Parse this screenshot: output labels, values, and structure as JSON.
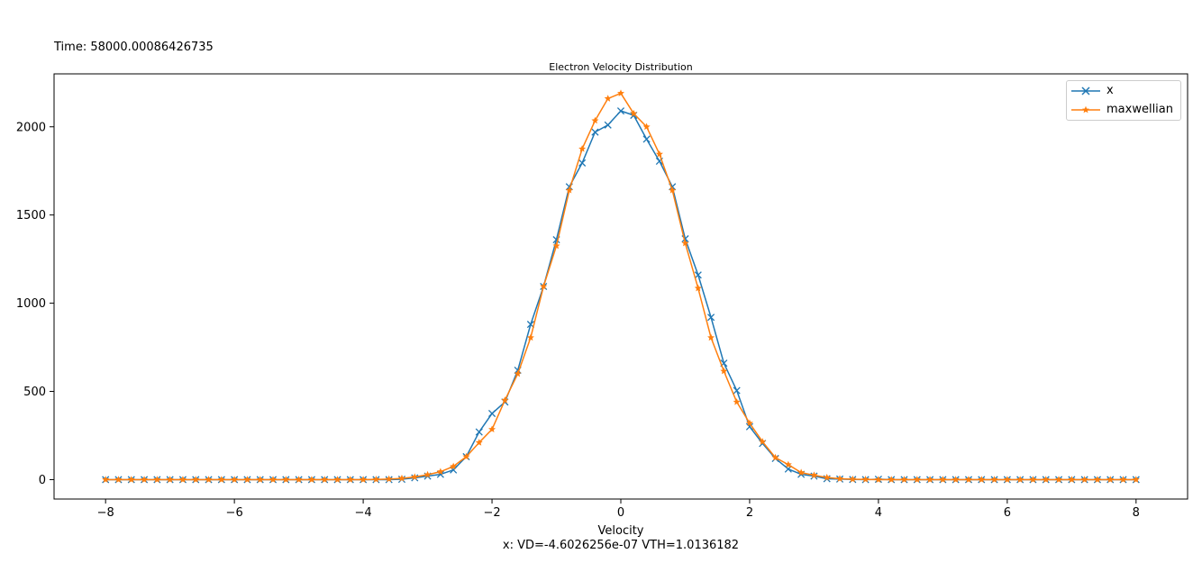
{
  "figure_texts": {
    "time_label": "Time: 58000.00086426735",
    "subcaption": "x: VD=-4.6026256e-07   VTH=1.0136182"
  },
  "colors": {
    "series_x": "#1f77b4",
    "series_maxwellian": "#ff7f0e"
  },
  "chart_data": {
    "type": "line",
    "title": "Electron Velocity Distribution",
    "xlabel": "Velocity",
    "ylabel": "",
    "xlim": [
      -8.8,
      8.8
    ],
    "ylim": [
      -110,
      2300
    ],
    "xticks": [
      -8,
      -6,
      -4,
      -2,
      0,
      2,
      4,
      6,
      8
    ],
    "xtick_labels": [
      "−8",
      "−6",
      "−4",
      "−2",
      "0",
      "2",
      "4",
      "6",
      "8"
    ],
    "yticks": [
      0,
      500,
      1000,
      1500,
      2000
    ],
    "ytick_labels": [
      "0",
      "500",
      "1000",
      "1500",
      "2000"
    ],
    "grid": false,
    "legend_position": "top-right",
    "x": [
      -8.0,
      -7.8,
      -7.6,
      -7.4,
      -7.2,
      -7.0,
      -6.8,
      -6.6,
      -6.4,
      -6.2,
      -6.0,
      -5.8,
      -5.6,
      -5.4,
      -5.2,
      -5.0,
      -4.8,
      -4.6,
      -4.4,
      -4.2,
      -4.0,
      -3.8,
      -3.6,
      -3.4,
      -3.2,
      -3.0,
      -2.8,
      -2.6,
      -2.4,
      -2.2,
      -2.0,
      -1.8,
      -1.6,
      -1.4,
      -1.2,
      -1.0,
      -0.8,
      -0.6,
      -0.4,
      -0.2,
      0.0,
      0.2,
      0.4,
      0.6,
      0.8,
      1.0,
      1.2,
      1.4,
      1.6,
      1.8,
      2.0,
      2.2,
      2.4,
      2.6,
      2.8,
      3.0,
      3.2,
      3.4,
      3.6,
      3.8,
      4.0,
      4.2,
      4.4,
      4.6,
      4.8,
      5.0,
      5.2,
      5.4,
      5.6,
      5.8,
      6.0,
      6.2,
      6.4,
      6.6,
      6.8,
      7.0,
      7.2,
      7.4,
      7.6,
      7.8,
      8.0
    ],
    "series": [
      {
        "name": "x",
        "marker": "x",
        "values": [
          0,
          0,
          0,
          0,
          0,
          0,
          0,
          0,
          0,
          0,
          0,
          0,
          0,
          0,
          0,
          0,
          0,
          0,
          0,
          0,
          0,
          0,
          0,
          2,
          10,
          20,
          30,
          55,
          130,
          270,
          375,
          440,
          620,
          880,
          1095,
          1360,
          1660,
          1795,
          1970,
          2010,
          2090,
          2065,
          1930,
          1805,
          1660,
          1365,
          1160,
          920,
          660,
          505,
          300,
          205,
          120,
          60,
          30,
          20,
          5,
          3,
          1,
          0,
          2,
          0,
          0,
          0,
          0,
          0,
          0,
          0,
          0,
          0,
          0,
          0,
          0,
          0,
          0,
          0,
          0,
          0,
          0,
          0,
          0
        ]
      },
      {
        "name": "maxwellian",
        "marker": "star",
        "values": [
          0,
          0,
          0,
          0,
          0,
          0,
          0,
          0,
          0,
          0,
          0,
          0,
          0,
          0,
          0,
          0,
          0,
          0,
          0,
          0,
          0,
          1,
          3,
          7,
          15,
          28,
          45,
          75,
          130,
          210,
          285,
          450,
          600,
          805,
          1095,
          1325,
          1640,
          1875,
          2035,
          2160,
          2190,
          2075,
          2000,
          1845,
          1640,
          1340,
          1085,
          805,
          615,
          440,
          320,
          215,
          125,
          85,
          40,
          25,
          12,
          5,
          2,
          1,
          0,
          0,
          0,
          0,
          0,
          0,
          0,
          0,
          0,
          0,
          0,
          0,
          0,
          0,
          0,
          0,
          0,
          0,
          0,
          0,
          0
        ]
      }
    ]
  }
}
